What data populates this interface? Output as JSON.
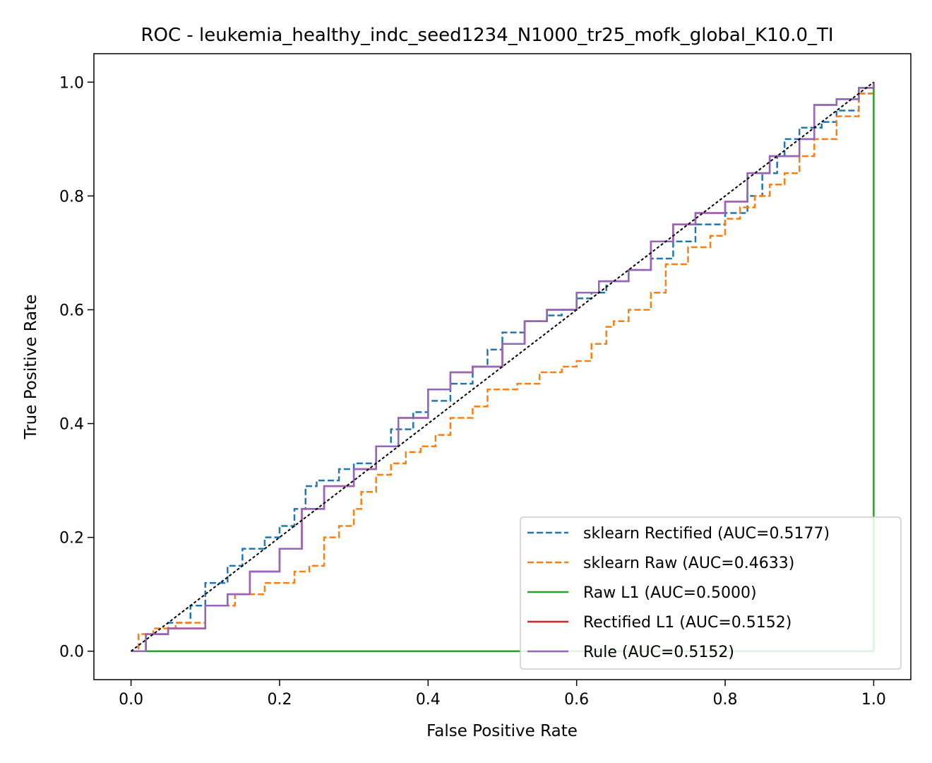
{
  "chart_data": {
    "type": "line",
    "title": "ROC - leukemia_healthy_indc_seed1234_N1000_tr25_mofk_global_K10.0_TI",
    "xlabel": "False Positive Rate",
    "ylabel": "True Positive Rate",
    "xlim": [
      -0.05,
      1.05
    ],
    "ylim": [
      -0.05,
      1.05
    ],
    "xticks": [
      "0.0",
      "0.2",
      "0.4",
      "0.6",
      "0.8",
      "1.0"
    ],
    "yticks": [
      "0.0",
      "0.2",
      "0.4",
      "0.6",
      "0.8",
      "1.0"
    ],
    "grid": false,
    "legend_position": "lower-right",
    "chance_line": {
      "x": [
        0,
        1
      ],
      "y": [
        0,
        1
      ],
      "color": "#000000",
      "style": "dashed"
    },
    "series": [
      {
        "name": "sklearn Rectified (AUC=0.5177)",
        "color": "#1f77b4",
        "style": "dashed",
        "x": [
          0.0,
          0.02,
          0.05,
          0.08,
          0.1,
          0.13,
          0.15,
          0.18,
          0.2,
          0.22,
          0.235,
          0.25,
          0.28,
          0.3,
          0.33,
          0.35,
          0.38,
          0.4,
          0.43,
          0.46,
          0.48,
          0.5,
          0.53,
          0.56,
          0.58,
          0.6,
          0.62,
          0.64,
          0.67,
          0.7,
          0.73,
          0.76,
          0.8,
          0.83,
          0.85,
          0.87,
          0.88,
          0.9,
          0.93,
          0.95,
          0.98,
          1.0
        ],
        "y": [
          0.0,
          0.03,
          0.05,
          0.08,
          0.12,
          0.15,
          0.18,
          0.2,
          0.22,
          0.25,
          0.29,
          0.3,
          0.32,
          0.33,
          0.36,
          0.39,
          0.42,
          0.44,
          0.47,
          0.5,
          0.53,
          0.56,
          0.58,
          0.59,
          0.6,
          0.62,
          0.63,
          0.65,
          0.67,
          0.69,
          0.72,
          0.75,
          0.77,
          0.8,
          0.84,
          0.87,
          0.9,
          0.92,
          0.93,
          0.95,
          0.98,
          1.0
        ]
      },
      {
        "name": "sklearn Raw (AUC=0.4633)",
        "color": "#ff7f0e",
        "style": "dashed",
        "x": [
          0.0,
          0.01,
          0.03,
          0.06,
          0.1,
          0.14,
          0.18,
          0.22,
          0.24,
          0.26,
          0.28,
          0.3,
          0.31,
          0.33,
          0.35,
          0.37,
          0.39,
          0.41,
          0.43,
          0.46,
          0.48,
          0.52,
          0.55,
          0.58,
          0.6,
          0.62,
          0.64,
          0.65,
          0.67,
          0.7,
          0.72,
          0.75,
          0.78,
          0.8,
          0.82,
          0.84,
          0.86,
          0.88,
          0.9,
          0.92,
          0.95,
          0.98,
          1.0
        ],
        "y": [
          0.0,
          0.03,
          0.04,
          0.05,
          0.08,
          0.1,
          0.12,
          0.14,
          0.15,
          0.2,
          0.22,
          0.25,
          0.28,
          0.31,
          0.33,
          0.35,
          0.36,
          0.38,
          0.41,
          0.43,
          0.46,
          0.47,
          0.49,
          0.5,
          0.51,
          0.54,
          0.57,
          0.58,
          0.6,
          0.63,
          0.68,
          0.71,
          0.73,
          0.76,
          0.78,
          0.8,
          0.82,
          0.84,
          0.87,
          0.9,
          0.94,
          0.98,
          1.0
        ]
      },
      {
        "name": "Raw L1 (AUC=0.5000)",
        "color": "#2ca02c",
        "style": "solid",
        "x": [
          0.0,
          1.0
        ],
        "y": [
          0.0,
          1.0
        ]
      },
      {
        "name": "Rectified L1 (AUC=0.5152)",
        "color": "#d62728",
        "style": "solid",
        "x": [
          0.0,
          0.02,
          0.05,
          0.1,
          0.13,
          0.16,
          0.2,
          0.23,
          0.26,
          0.3,
          0.33,
          0.36,
          0.4,
          0.43,
          0.46,
          0.5,
          0.53,
          0.56,
          0.6,
          0.63,
          0.67,
          0.7,
          0.73,
          0.76,
          0.8,
          0.83,
          0.86,
          0.9,
          0.92,
          0.95,
          0.98,
          1.0
        ],
        "y": [
          0.0,
          0.03,
          0.04,
          0.08,
          0.1,
          0.14,
          0.18,
          0.25,
          0.29,
          0.32,
          0.36,
          0.41,
          0.46,
          0.49,
          0.5,
          0.54,
          0.58,
          0.6,
          0.63,
          0.65,
          0.67,
          0.72,
          0.75,
          0.77,
          0.79,
          0.84,
          0.87,
          0.9,
          0.96,
          0.97,
          0.99,
          1.0
        ]
      },
      {
        "name": "Rule (AUC=0.5152)",
        "color": "#9467bd",
        "style": "solid",
        "x": [
          0.0,
          0.02,
          0.05,
          0.1,
          0.13,
          0.16,
          0.2,
          0.23,
          0.26,
          0.3,
          0.33,
          0.36,
          0.4,
          0.43,
          0.46,
          0.5,
          0.53,
          0.56,
          0.6,
          0.63,
          0.67,
          0.7,
          0.73,
          0.76,
          0.8,
          0.83,
          0.86,
          0.9,
          0.92,
          0.95,
          0.98,
          1.0
        ],
        "y": [
          0.0,
          0.03,
          0.04,
          0.08,
          0.1,
          0.14,
          0.18,
          0.25,
          0.29,
          0.32,
          0.36,
          0.41,
          0.46,
          0.49,
          0.5,
          0.54,
          0.58,
          0.6,
          0.63,
          0.65,
          0.67,
          0.72,
          0.75,
          0.77,
          0.79,
          0.84,
          0.87,
          0.9,
          0.96,
          0.97,
          0.99,
          1.0
        ]
      }
    ]
  }
}
